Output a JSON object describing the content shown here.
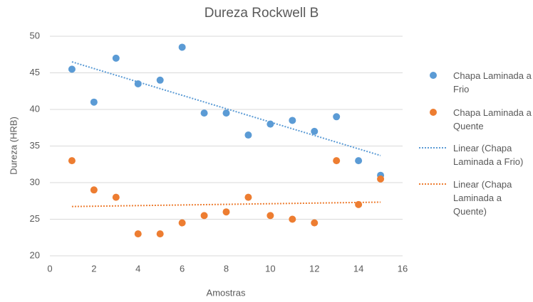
{
  "chart_data": {
    "type": "scatter",
    "title": "Dureza Rockwell B",
    "xlabel": "Amostras",
    "ylabel": "Dureza (HRB)",
    "x": [
      1,
      2,
      3,
      4,
      5,
      6,
      7,
      8,
      9,
      10,
      11,
      12,
      13,
      14,
      15
    ],
    "series": [
      {
        "name": "Chapa Laminada a Frio",
        "color": "#5b9bd5",
        "values": [
          45.5,
          41,
          47,
          43.5,
          44,
          48.5,
          39.5,
          39.5,
          36.5,
          38,
          38.5,
          37,
          39,
          33,
          31
        ],
        "trendline": {
          "type": "linear",
          "name": "Linear (Chapa Laminada a Frio)",
          "style": "dotted"
        }
      },
      {
        "name": "Chapa Laminada a Quente",
        "color": "#ed7d31",
        "values": [
          33,
          29,
          28,
          23,
          23,
          24.5,
          25.5,
          26,
          28,
          25.5,
          25,
          24.5,
          33,
          27,
          30.5
        ],
        "trendline": {
          "type": "linear",
          "name": "Linear (Chapa Laminada a Quente)",
          "style": "dotted"
        }
      }
    ],
    "xlim": [
      0,
      16
    ],
    "xticks": [
      0,
      2,
      4,
      6,
      8,
      10,
      12,
      14,
      16
    ],
    "ylim": [
      20,
      50
    ],
    "yticks": [
      20,
      25,
      30,
      35,
      40,
      45,
      50
    ],
    "grid": true,
    "legend": "right"
  }
}
